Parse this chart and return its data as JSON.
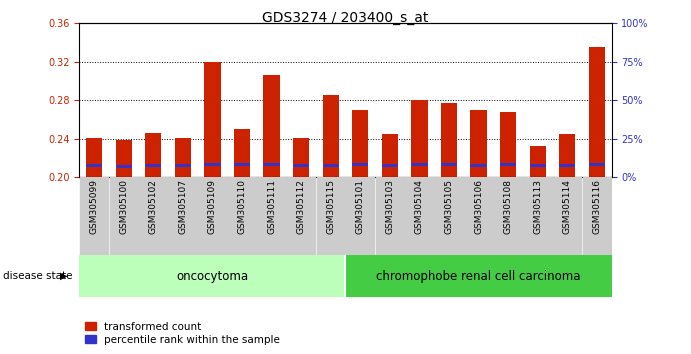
{
  "title": "GDS3274 / 203400_s_at",
  "samples": [
    "GSM305099",
    "GSM305100",
    "GSM305102",
    "GSM305107",
    "GSM305109",
    "GSM305110",
    "GSM305111",
    "GSM305112",
    "GSM305115",
    "GSM305101",
    "GSM305103",
    "GSM305104",
    "GSM305105",
    "GSM305106",
    "GSM305108",
    "GSM305113",
    "GSM305114",
    "GSM305116"
  ],
  "red_values": [
    0.241,
    0.238,
    0.246,
    0.241,
    0.32,
    0.25,
    0.306,
    0.241,
    0.285,
    0.27,
    0.245,
    0.28,
    0.277,
    0.27,
    0.268,
    0.232,
    0.245,
    0.335
  ],
  "blue_heights": [
    0.004,
    0.003,
    0.004,
    0.004,
    0.004,
    0.004,
    0.004,
    0.003,
    0.004,
    0.004,
    0.004,
    0.004,
    0.004,
    0.004,
    0.004,
    0.004,
    0.003,
    0.004
  ],
  "blue_bottoms": [
    0.21,
    0.209,
    0.21,
    0.21,
    0.211,
    0.211,
    0.211,
    0.21,
    0.21,
    0.211,
    0.21,
    0.211,
    0.211,
    0.21,
    0.211,
    0.21,
    0.21,
    0.211
  ],
  "ymin": 0.2,
  "ymax": 0.36,
  "yticks": [
    0.2,
    0.24,
    0.28,
    0.32,
    0.36
  ],
  "right_ytick_pct": [
    0,
    25,
    50,
    75,
    100
  ],
  "group1_label": "oncocytoma",
  "group2_label": "chromophobe renal cell carcinoma",
  "group1_count": 9,
  "group2_count": 9,
  "disease_state_label": "disease state",
  "legend_red": "transformed count",
  "legend_blue": "percentile rank within the sample",
  "bar_color_red": "#cc2200",
  "bar_color_blue": "#3333cc",
  "group1_bg": "#bbffbb",
  "group2_bg": "#44cc44",
  "tick_bg": "#cccccc",
  "bar_width": 0.55,
  "base": 0.2,
  "title_fontsize": 10,
  "axis_label_fontsize": 8,
  "tick_fontsize": 7,
  "sample_fontsize": 6.5
}
